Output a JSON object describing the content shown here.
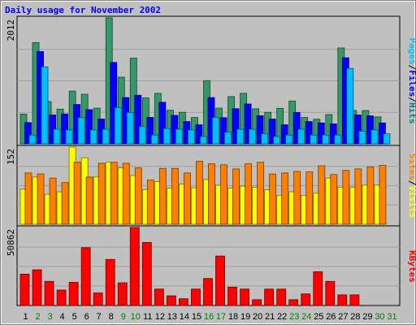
{
  "chart_data": {
    "type": "bar",
    "title": "Daily usage for November 2002",
    "categories": [
      "1",
      "2",
      "3",
      "4",
      "5",
      "6",
      "7",
      "8",
      "9",
      "10",
      "11",
      "12",
      "13",
      "14",
      "15",
      "16",
      "17",
      "18",
      "19",
      "20",
      "21",
      "22",
      "23",
      "24",
      "25",
      "26",
      "27",
      "28",
      "29",
      "30",
      "31"
    ],
    "weekend_days": [
      "2",
      "3",
      "9",
      "10",
      "16",
      "17",
      "23",
      "24",
      "30",
      "31"
    ],
    "panels": [
      {
        "id": "hits-files-pages",
        "max_label": "2012",
        "ylim": [
          0,
          2012
        ],
        "side_labels": [
          "Pages",
          "/",
          "Files",
          "/",
          "Hits"
        ],
        "side_label_colors": [
          "#00bfff",
          "#000000",
          "#0000ff",
          "#000000",
          "#008080"
        ],
        "series": [
          {
            "name": "Hits",
            "color": "#339966",
            "values": [
              476,
              1618,
              675,
              554,
              842,
              792,
              570,
              2012,
              1065,
              1368,
              734,
              806,
              536,
              503,
              421,
              1010,
              570,
              754,
              807,
              559,
              503,
              567,
              684,
              421,
              393,
              467,
              1532,
              532,
              532,
              430,
              0
            ]
          },
          {
            "name": "Files",
            "color": "#0000ff",
            "values": [
              339,
              1473,
              462,
              477,
              627,
              545,
              395,
              1300,
              739,
              776,
              422,
              664,
              455,
              355,
              304,
              739,
              417,
              561,
              636,
              449,
              395,
              304,
              500,
              355,
              334,
              318,
              1375,
              462,
              447,
              333,
              0
            ]
          },
          {
            "name": "Pages",
            "color": "#00bfff",
            "values": [
              139,
              1230,
              232,
              221,
              418,
              221,
              232,
              577,
              500,
              276,
              139,
              244,
              232,
              221,
              117,
              418,
              185,
              232,
              232,
              160,
              117,
              139,
              232,
              139,
              139,
              139,
              1205,
              200,
              221,
              160,
              0
            ]
          }
        ]
      },
      {
        "id": "visits-sites",
        "max_label": "152",
        "ylim": [
          0,
          152
        ],
        "side_labels": [
          "Sites",
          "/",
          "Visits"
        ],
        "side_label_colors": [
          "#ff8000",
          "#000000",
          "#ffff00"
        ],
        "series": [
          {
            "name": "Visits",
            "color": "#ffff00",
            "values": [
              69,
              93,
              59,
              64,
              152,
              131,
              93,
              122,
              111,
              96,
              68,
              84,
              71,
              79,
              72,
              88,
              77,
              71,
              75,
              73,
              68,
              57,
              64,
              57,
              61,
              91,
              73,
              73,
              77,
              77,
              0
            ]
          },
          {
            "name": "Sites",
            "color": "#ff8000",
            "values": [
              101,
              99,
              91,
              82,
              122,
              93,
              120,
              122,
              120,
              111,
              87,
              110,
              110,
              101,
              124,
              119,
              117,
              109,
              119,
              122,
              99,
              101,
              104,
              103,
              115,
              98,
              106,
              109,
              113,
              116,
              0
            ]
          }
        ]
      },
      {
        "id": "kbytes",
        "max_label": "50862",
        "ylim": [
          0,
          50862
        ],
        "side_labels": [
          "KBytes"
        ],
        "side_label_colors": [
          "#ff0000"
        ],
        "series": [
          {
            "name": "KBytes",
            "color": "#ff0000",
            "values": [
              20452,
              23282,
              15739,
              10077,
              15110,
              37752,
              8191,
              30049,
              14796,
              50862,
              41112,
              10706,
              6308,
              4422,
              10706,
              17627,
              32251,
              11963,
              10706,
              3793,
              10706,
              10706,
              3793,
              7562,
              22024,
              15739,
              6937,
              6937,
              0,
              0,
              0
            ]
          }
        ]
      }
    ]
  }
}
